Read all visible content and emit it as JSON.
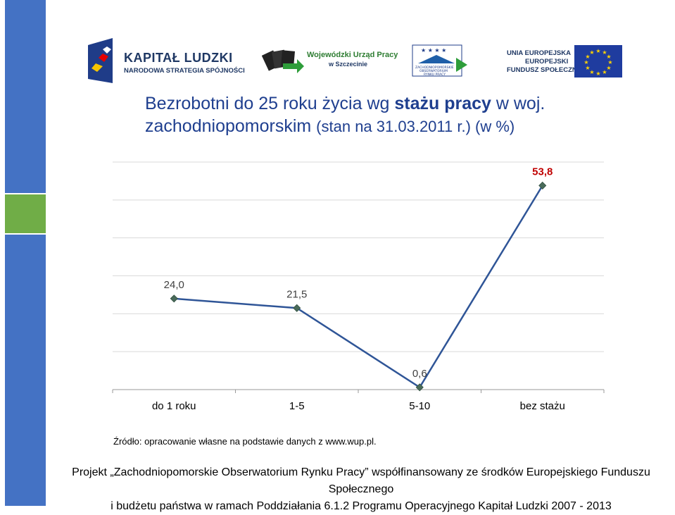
{
  "logos": {
    "kapital_ludzki": {
      "title": "KAPITAŁ LUDZKI",
      "subtitle": "NARODOWA STRATEGIA SPÓJNOŚCI"
    },
    "wup": {
      "line1": "Wojewódzki Urząd Pracy",
      "line2": "w Szczecinie"
    },
    "zorp": {
      "line1": "ZACHODNIOPOMORSKIE",
      "line2": "OBSERWATORIUM",
      "line3": "RYNKU PRACY"
    },
    "ue": {
      "line1": "UNIA EUROPEJSKA",
      "line2": "EUROPEJSKI",
      "line3": "FUNDUSZ SPOŁECZNY"
    }
  },
  "title": {
    "part1": "Bezrobotni do 25 roku życia wg ",
    "bold": "stażu pracy",
    "part2": " w woj.",
    "line2": "zachodniopomorskim ",
    "line2_small": "(stan na 31.03.2011 r.) (w %)"
  },
  "chart_data": {
    "type": "line",
    "categories": [
      "do 1 roku",
      "1-5",
      "5-10",
      "bez stażu"
    ],
    "series": [
      {
        "values": [
          24.0,
          21.5,
          0.6,
          53.8
        ]
      }
    ],
    "data_labels": [
      "24,0",
      "21,5",
      "0,6",
      "53,8"
    ],
    "highlight_label_color": "#c00000",
    "line_color": "#2f5597",
    "marker_color": "#4a6b5a",
    "ylim": [
      0,
      60
    ],
    "grid": true
  },
  "source": "Źródło: opracowanie własne na podstawie danych z www.wup.pl.",
  "footer": {
    "line1": "Projekt „Zachodniopomorskie Obserwatorium Rynku Pracy” współfinansowany ze środków Europejskiego Funduszu Społecznego",
    "line2": "i budżetu państwa w ramach Poddziałania 6.1.2 Programu Operacyjnego Kapitał Ludzki 2007 - 2013"
  },
  "colors": {
    "sidebar_blue": "#4472c4",
    "sidebar_green": "#70ad47",
    "title": "#1f3f8f"
  }
}
